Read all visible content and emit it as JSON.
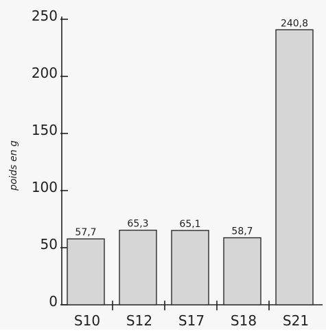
{
  "chart_data": {
    "type": "bar",
    "categories": [
      "S10",
      "S12",
      "S17",
      "S18",
      "S21"
    ],
    "values": [
      57.7,
      65.3,
      65.1,
      58.7,
      240.8
    ],
    "value_labels": [
      "57,7",
      "65,3",
      "65,1",
      "58,7",
      "240,8"
    ],
    "title": "",
    "xlabel": "",
    "ylabel": "poids en g",
    "ylim": [
      0,
      250
    ],
    "y_ticks": [
      0,
      50,
      100,
      150,
      200,
      250
    ],
    "y_tick_labels": [
      "0",
      "50",
      "100",
      "150",
      "200",
      "250"
    ],
    "grid": false,
    "legend": "none",
    "colors": {
      "bar_fill": "#d6d6d6",
      "bar_stroke": "#2a2a2a",
      "axis": "#1f1f1f",
      "background": "#f7f7f7"
    }
  }
}
